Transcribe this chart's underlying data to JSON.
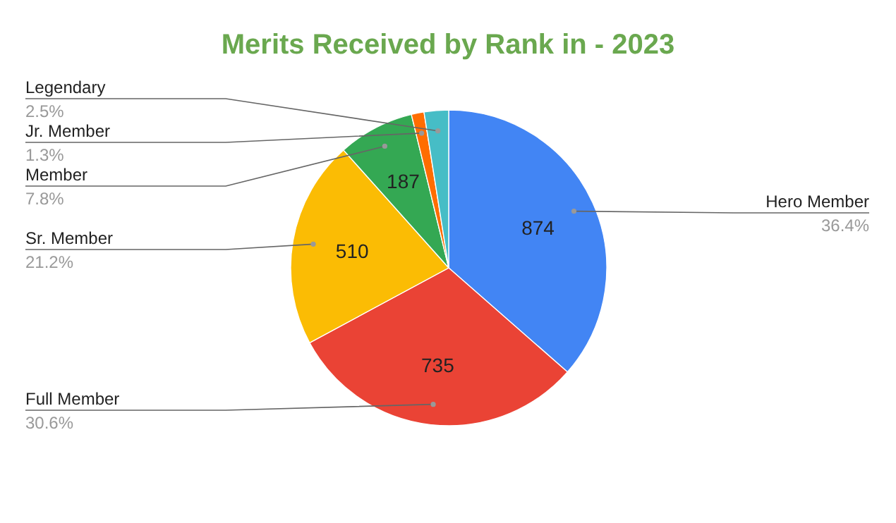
{
  "chart_data": {
    "type": "pie",
    "title": "Merits Received by Rank in - 2023",
    "categories": [
      "Hero Member",
      "Full Member",
      "Sr. Member",
      "Member",
      "Jr. Member",
      "Legendary"
    ],
    "values": [
      874,
      735,
      510,
      187,
      31,
      60
    ],
    "colors": [
      "#4285f4",
      "#ea4335",
      "#fbbc04",
      "#34a853",
      "#ff6d01",
      "#46bdc6"
    ],
    "value_labels": [
      "874",
      "735",
      "510",
      "187",
      null,
      null
    ],
    "annotations": [
      {
        "text": "36.4%",
        "x": "Hero Member"
      },
      {
        "text": "30.6%",
        "x": "Full Member"
      },
      {
        "text": "21.2%",
        "x": "Sr. Member"
      },
      {
        "text": "7.8%",
        "x": "Member"
      },
      {
        "text": "1.3%",
        "x": "Jr. Member"
      },
      {
        "text": "2.5%",
        "x": "Legendary"
      }
    ]
  }
}
